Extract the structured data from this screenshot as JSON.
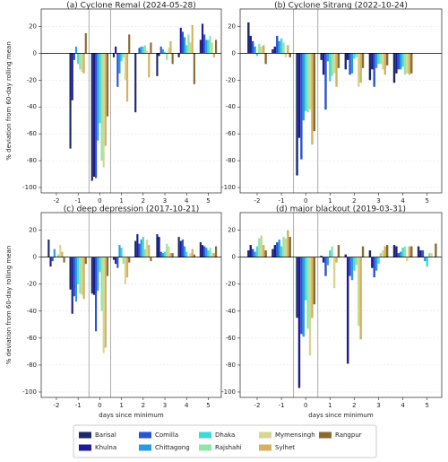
{
  "chart_data": [
    {
      "type": "bar",
      "title": "(a) Cyclone Remal (2024-05-28)",
      "ylabel": "% deviation from 60-day rolling mean",
      "x": [
        -2,
        -1,
        0,
        1,
        2,
        3,
        4,
        5
      ],
      "xlim": [
        -2.7,
        5.6
      ],
      "xticks": [
        -2,
        -1,
        0,
        1,
        2,
        3,
        4,
        5
      ],
      "ylim": [
        -104,
        33
      ],
      "yticks": [
        -100,
        -80,
        -60,
        -40,
        -20,
        0,
        20
      ],
      "grid": true,
      "vlines": [
        -0.5,
        0.5
      ],
      "hlines": [
        0
      ],
      "series": [
        {
          "name": "Barisal",
          "color": "#1b2a66",
          "values": [
            null,
            -71,
            -95,
            -3,
            -44,
            -17,
            -3,
            10
          ]
        },
        {
          "name": "Khulna",
          "color": "#1e1a9a",
          "values": [
            null,
            -35,
            -92,
            5,
            0,
            -2,
            19,
            22
          ]
        },
        {
          "name": "Comilla",
          "color": "#2a55d0",
          "values": [
            null,
            -5,
            -93,
            -25,
            4,
            5,
            16,
            14
          ]
        },
        {
          "name": "Chittagong",
          "color": "#2a9be0",
          "values": [
            null,
            5,
            -65,
            -15,
            5,
            3,
            12,
            10
          ]
        },
        {
          "name": "Dhaka",
          "color": "#40d8d8",
          "values": [
            null,
            -8,
            -52,
            -6,
            5,
            1,
            6,
            10
          ]
        },
        {
          "name": "Rajshahi",
          "color": "#90e6a8",
          "values": [
            null,
            -12,
            -80,
            -3,
            6,
            -5,
            14,
            13
          ]
        },
        {
          "name": "Mymensingh",
          "color": "#d6d690",
          "values": [
            null,
            -14,
            -85,
            -20,
            2,
            4,
            8,
            8
          ]
        },
        {
          "name": "Sylhet",
          "color": "#d4b060",
          "values": [
            null,
            -15,
            -69,
            -36,
            -18,
            9,
            21,
            -3
          ]
        },
        {
          "name": "Rangpur",
          "color": "#8b6a30",
          "values": [
            null,
            15,
            -47,
            14,
            8,
            -8,
            -23,
            10
          ]
        }
      ]
    },
    {
      "type": "bar",
      "title": "(b) Cyclone Sitrang (2022-10-24)",
      "x": [
        -2,
        -1,
        0,
        1,
        2,
        3,
        4,
        5
      ],
      "xlim": [
        -2.7,
        5.6
      ],
      "xticks": [
        -2,
        -1,
        0,
        1,
        2,
        3,
        4,
        5
      ],
      "ylim": [
        -104,
        33
      ],
      "yticks": [
        -100,
        -80,
        -60,
        -40,
        -20,
        0,
        20
      ],
      "grid": true,
      "vlines": [
        -0.5,
        0.5
      ],
      "hlines": [
        0
      ],
      "series": [
        {
          "name": "Barisal",
          "color": "#1b2a66",
          "values": [
            23,
            3,
            -91,
            -5,
            -12,
            -20,
            -22,
            null
          ]
        },
        {
          "name": "Khulna",
          "color": "#1e1a9a",
          "values": [
            13,
            5,
            -63,
            -16,
            -5,
            -12,
            -15,
            null
          ]
        },
        {
          "name": "Comilla",
          "color": "#2a55d0",
          "values": [
            9,
            13,
            -79,
            -42,
            -16,
            -25,
            -12,
            null
          ]
        },
        {
          "name": "Chittagong",
          "color": "#2a9be0",
          "values": [
            5,
            9,
            -50,
            -6,
            -15,
            -11,
            -12,
            null
          ]
        },
        {
          "name": "Dhaka",
          "color": "#40d8d8",
          "values": [
            -2,
            11,
            -43,
            -21,
            -4,
            -8,
            -10,
            null
          ]
        },
        {
          "name": "Rajshahi",
          "color": "#90e6a8",
          "values": [
            7,
            8,
            -44,
            -17,
            -3,
            -8,
            -16,
            null
          ]
        },
        {
          "name": "Mymensingh",
          "color": "#d6d690",
          "values": [
            5,
            -3,
            -42,
            -15,
            -25,
            -12,
            -15,
            null
          ]
        },
        {
          "name": "Sylhet",
          "color": "#d4b060",
          "values": [
            6,
            6,
            -68,
            -25,
            -22,
            -16,
            -16,
            null
          ]
        },
        {
          "name": "Rangpur",
          "color": "#8b6a30",
          "values": [
            -8,
            -3,
            -58,
            -11,
            -11,
            -9,
            -15,
            null
          ]
        }
      ]
    },
    {
      "type": "bar",
      "title": "(c) deep depression (2017-10-21)",
      "ylabel": "% deviation from 60-day rolling mean",
      "xlabel": "days since minimum",
      "x": [
        -2,
        -1,
        0,
        1,
        2,
        3,
        4,
        5
      ],
      "xlim": [
        -2.7,
        5.6
      ],
      "xticks": [
        -2,
        -1,
        0,
        1,
        2,
        3,
        4,
        5
      ],
      "ylim": [
        -104,
        33
      ],
      "yticks": [
        -100,
        -80,
        -60,
        -40,
        -20,
        0,
        20
      ],
      "grid": true,
      "vlines": [
        -0.5,
        0.5
      ],
      "hlines": [
        0
      ],
      "series": [
        {
          "name": "Barisal",
          "color": "#1b2a66",
          "values": [
            13,
            -24,
            -27,
            -2,
            12,
            17,
            15,
            11
          ]
        },
        {
          "name": "Khulna",
          "color": "#1e1a9a",
          "values": [
            -7,
            -42,
            -28,
            -5,
            17,
            15,
            12,
            9
          ]
        },
        {
          "name": "Comilla",
          "color": "#2a55d0",
          "values": [
            -3,
            -29,
            -55,
            -8,
            10,
            4,
            13,
            8
          ]
        },
        {
          "name": "Chittagong",
          "color": "#2a9be0",
          "values": [
            6,
            -33,
            -25,
            9,
            13,
            3,
            8,
            7
          ]
        },
        {
          "name": "Dhaka",
          "color": "#40d8d8",
          "values": [
            0,
            -20,
            -11,
            7,
            15,
            4,
            4,
            5
          ]
        },
        {
          "name": "Rajshahi",
          "color": "#90e6a8",
          "values": [
            2,
            -27,
            -40,
            -5,
            6,
            10,
            0,
            7
          ]
        },
        {
          "name": "Mymensingh",
          "color": "#d6d690",
          "values": [
            9,
            -28,
            -71,
            -20,
            13,
            8,
            3,
            3
          ]
        },
        {
          "name": "Sylhet",
          "color": "#d4b060",
          "values": [
            4,
            -31,
            -67,
            -15,
            9,
            3,
            6,
            3
          ]
        },
        {
          "name": "Rangpur",
          "color": "#8b6a30",
          "values": [
            -4,
            -5,
            -14,
            -4,
            -3,
            3,
            2,
            8
          ]
        }
      ]
    },
    {
      "type": "bar",
      "title": "(d) major blackout (2019-03-31)",
      "xlabel": "days since minimum",
      "x": [
        -2,
        -1,
        0,
        1,
        2,
        3,
        4,
        5
      ],
      "xlim": [
        -2.7,
        5.6
      ],
      "xticks": [
        -2,
        -1,
        0,
        1,
        2,
        3,
        4,
        5
      ],
      "ylim": [
        -104,
        33
      ],
      "yticks": [
        -100,
        -80,
        -60,
        -40,
        -20,
        0,
        20
      ],
      "grid": true,
      "vlines": [
        -0.5,
        0.5
      ],
      "hlines": [
        0
      ],
      "series": [
        {
          "name": "Barisal",
          "color": "#1b2a66",
          "values": [
            5,
            6,
            -45,
            1,
            2,
            5,
            9,
            8
          ]
        },
        {
          "name": "Khulna",
          "color": "#1e1a9a",
          "values": [
            9,
            9,
            -97,
            -4,
            -79,
            -8,
            8,
            5
          ]
        },
        {
          "name": "Comilla",
          "color": "#2a55d0",
          "values": [
            6,
            11,
            -57,
            -14,
            -14,
            -15,
            3,
            5
          ]
        },
        {
          "name": "Chittagong",
          "color": "#2a9be0",
          "values": [
            4,
            13,
            -59,
            -6,
            -17,
            -10,
            4,
            -3
          ]
        },
        {
          "name": "Dhaka",
          "color": "#40d8d8",
          "values": [
            8,
            8,
            -32,
            5,
            -10,
            -5,
            7,
            -7
          ]
        },
        {
          "name": "Rajshahi",
          "color": "#90e6a8",
          "values": [
            14,
            15,
            -53,
            8,
            -6,
            3,
            8,
            3
          ]
        },
        {
          "name": "Mymensingh",
          "color": "#d6d690",
          "values": [
            16,
            14,
            -73,
            -23,
            -51,
            5,
            -3,
            3
          ]
        },
        {
          "name": "Sylhet",
          "color": "#d4b060",
          "values": [
            9,
            20,
            -45,
            -4,
            -61,
            8,
            8,
            0
          ]
        },
        {
          "name": "Rangpur",
          "color": "#8b6a30",
          "values": [
            5,
            15,
            -35,
            9,
            8,
            9,
            8,
            10
          ]
        }
      ]
    }
  ]
}
